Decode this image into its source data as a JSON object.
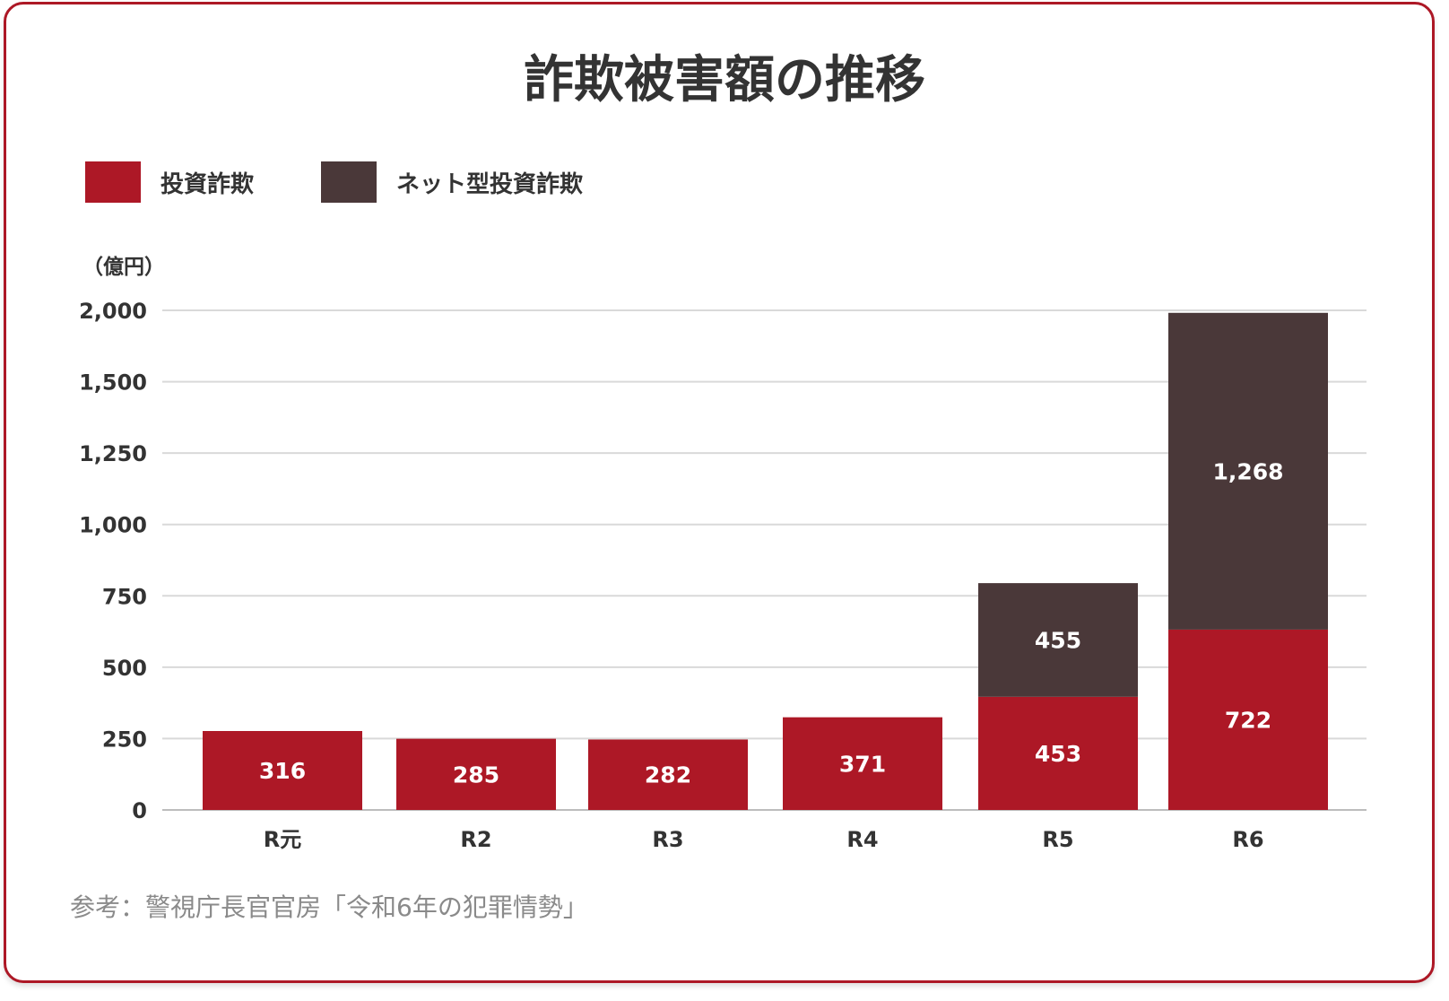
{
  "chart_data": {
    "type": "bar",
    "stacked": true,
    "title": "詐欺被害額の推移",
    "unit_label": "（億円）",
    "categories": [
      "R元",
      "R2",
      "R3",
      "R4",
      "R5",
      "R6"
    ],
    "series": [
      {
        "name": "投資詐欺",
        "color": "#ad1826",
        "values": [
          316,
          285,
          282,
          371,
          453,
          722
        ]
      },
      {
        "name": "ネット型投資詐欺",
        "color": "#4a3839",
        "values": [
          null,
          null,
          null,
          null,
          455,
          1268
        ]
      }
    ],
    "yticks": [
      "0",
      "250",
      "500",
      "750",
      "1,000",
      "1,250",
      "1,500",
      "2,000"
    ],
    "ylim": [
      0,
      2000
    ],
    "grid": true,
    "legend_position": "top-left",
    "source": "参考：警視庁長官官房「令和6年の犯罪情勢」"
  }
}
